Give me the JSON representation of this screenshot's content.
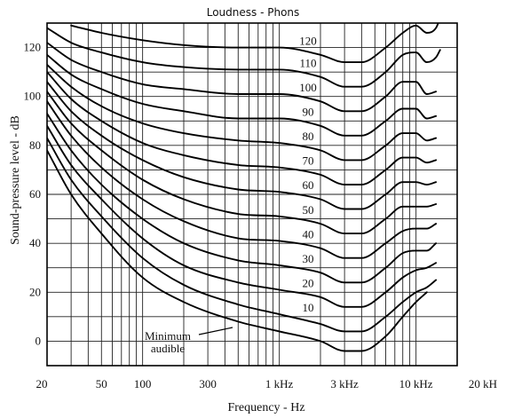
{
  "chart_data": {
    "type": "line",
    "title": "Loudness - Phons",
    "xlabel": "Frequency - Hz",
    "ylabel": "Sound-pressure level - dB",
    "x_scale": "log",
    "xlim": [
      20,
      20000
    ],
    "ylim": [
      -10,
      130
    ],
    "x_ticks": [
      {
        "value": 20,
        "label": "20"
      },
      {
        "value": 50,
        "label": "50"
      },
      {
        "value": 100,
        "label": "100"
      },
      {
        "value": 300,
        "label": "300"
      },
      {
        "value": 1000,
        "label": "1 kHz"
      },
      {
        "value": 3000,
        "label": "3 kHz"
      },
      {
        "value": 10000,
        "label": "10 kHz"
      },
      {
        "value": 20000,
        "label": "20 kH"
      }
    ],
    "y_ticks": [
      0,
      20,
      40,
      60,
      80,
      100,
      120
    ],
    "grid": true,
    "annotation": {
      "lines": [
        "Minimum",
        "audible"
      ]
    },
    "series": [
      {
        "name": "Minimum audible",
        "label": "",
        "x": [
          20,
          30,
          50,
          100,
          200,
          500,
          1000,
          2000,
          3000,
          4000,
          6000,
          8000,
          10000,
          12000
        ],
        "y": [
          78,
          60,
          44,
          26,
          16,
          8,
          4,
          0,
          -4,
          -4,
          2,
          10,
          16,
          20
        ]
      },
      {
        "name": "10",
        "label": "10",
        "x": [
          20,
          30,
          50,
          100,
          200,
          500,
          1000,
          2000,
          3000,
          4000,
          6000,
          8000,
          10000,
          12000,
          14000
        ],
        "y": [
          83,
          66,
          51,
          34,
          23,
          15,
          11,
          7,
          4,
          4,
          10,
          16,
          20,
          22,
          25
        ]
      },
      {
        "name": "20",
        "label": "20",
        "x": [
          20,
          30,
          50,
          100,
          200,
          500,
          1000,
          2000,
          3000,
          4000,
          6000,
          8000,
          10000,
          12000,
          14000
        ],
        "y": [
          88,
          72,
          58,
          42,
          31,
          24,
          21,
          18,
          14,
          14,
          20,
          26,
          29,
          30,
          32
        ]
      },
      {
        "name": "30",
        "label": "30",
        "x": [
          20,
          30,
          50,
          100,
          200,
          500,
          1000,
          2000,
          3000,
          4000,
          6000,
          8000,
          10000,
          12000,
          14000
        ],
        "y": [
          93,
          78,
          64,
          50,
          40,
          33,
          31,
          28,
          24,
          24,
          30,
          36,
          37,
          37,
          40
        ]
      },
      {
        "name": "40",
        "label": "40",
        "x": [
          20,
          30,
          50,
          100,
          200,
          500,
          1000,
          2000,
          3000,
          4000,
          6000,
          8000,
          10000,
          12000,
          14000
        ],
        "y": [
          98,
          84,
          71,
          58,
          49,
          42,
          41,
          38,
          34,
          34,
          40,
          45,
          46,
          46,
          48
        ]
      },
      {
        "name": "50",
        "label": "50",
        "x": [
          20,
          30,
          50,
          100,
          200,
          500,
          1000,
          2000,
          3000,
          4000,
          6000,
          8000,
          10000,
          12000,
          14000
        ],
        "y": [
          102,
          89,
          78,
          66,
          58,
          52,
          51,
          48,
          44,
          44,
          50,
          55,
          55,
          55,
          56
        ]
      },
      {
        "name": "60",
        "label": "60",
        "x": [
          20,
          30,
          50,
          100,
          200,
          500,
          1000,
          2000,
          3000,
          4000,
          6000,
          8000,
          10000,
          12000,
          14000
        ],
        "y": [
          106,
          94,
          84,
          74,
          67,
          62,
          61,
          58,
          54,
          54,
          60,
          65,
          65,
          64,
          65
        ]
      },
      {
        "name": "70",
        "label": "70",
        "x": [
          20,
          30,
          50,
          100,
          200,
          500,
          1000,
          2000,
          3000,
          4000,
          6000,
          8000,
          10000,
          12000,
          14000
        ],
        "y": [
          110,
          99,
          90,
          81,
          76,
          72,
          71,
          68,
          64,
          64,
          70,
          75,
          75,
          73,
          74
        ]
      },
      {
        "name": "80",
        "label": "80",
        "x": [
          20,
          30,
          50,
          100,
          200,
          500,
          1000,
          2000,
          3000,
          4000,
          6000,
          8000,
          10000,
          12000,
          14000
        ],
        "y": [
          113,
          104,
          96,
          89,
          85,
          82,
          81,
          78,
          74,
          74,
          80,
          85,
          85,
          82,
          83
        ]
      },
      {
        "name": "90",
        "label": "90",
        "x": [
          20,
          30,
          50,
          100,
          200,
          500,
          1000,
          2000,
          3000,
          4000,
          6000,
          8000,
          10000,
          12000,
          14000
        ],
        "y": [
          117,
          109,
          103,
          97,
          94,
          91,
          91,
          88,
          84,
          84,
          90,
          95,
          95,
          91,
          92
        ]
      },
      {
        "name": "100",
        "label": "100",
        "x": [
          20,
          30,
          50,
          100,
          200,
          500,
          1000,
          2000,
          3000,
          4000,
          6000,
          8000,
          10000,
          12000,
          14000
        ],
        "y": [
          122,
          115,
          110,
          105,
          103,
          101,
          101,
          98,
          94,
          94,
          100,
          106,
          106,
          101,
          102
        ]
      },
      {
        "name": "110",
        "label": "110",
        "x": [
          20,
          30,
          50,
          100,
          200,
          500,
          1000,
          2000,
          3000,
          4000,
          6000,
          8000,
          10000,
          12000,
          14000,
          15000
        ],
        "y": [
          128,
          122,
          118,
          114,
          112,
          111,
          111,
          108,
          104,
          104,
          110,
          117,
          118,
          114,
          116,
          119
        ]
      },
      {
        "name": "120",
        "label": "120",
        "x": [
          30,
          50,
          100,
          200,
          500,
          1000,
          2000,
          3000,
          4000,
          6000,
          8000,
          10000,
          12000,
          14000,
          15000
        ],
        "y": [
          129,
          126,
          123,
          121,
          120,
          120,
          117,
          114,
          114,
          120,
          126,
          129,
          126,
          128,
          132
        ]
      }
    ]
  }
}
